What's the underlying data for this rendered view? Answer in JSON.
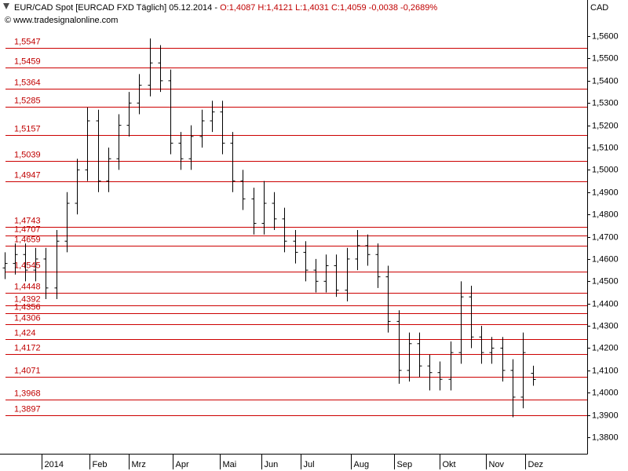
{
  "chart_data": {
    "type": "ohlc",
    "title": "EUR/CAD Spot [EURCAD FXD  Täglich] 05.12.2014 -",
    "subtitle": "O:1,4087 H:1,4121 L:1,4031 C:1,4059 -0,0038 -0,2689%",
    "source": "© www.tradesignalonline.com",
    "ylabel": "CAD",
    "color": "#000000",
    "level_color": "#cc0000",
    "x": [
      -18,
      -13,
      -8,
      -3,
      2,
      7,
      12,
      17,
      22,
      27,
      32,
      37,
      42,
      47,
      52,
      57,
      62,
      67,
      72,
      77,
      82,
      87,
      92,
      97,
      102,
      107,
      112,
      117,
      122,
      127,
      132,
      137,
      142,
      147,
      152,
      157,
      162,
      167,
      172,
      177,
      182,
      187,
      192,
      197,
      202,
      207,
      212,
      217,
      222,
      227,
      232,
      237
    ],
    "open": [
      1.456,
      1.458,
      1.462,
      1.455,
      1.46,
      1.447,
      1.468,
      1.485,
      1.5,
      1.522,
      1.495,
      1.505,
      1.52,
      1.53,
      1.538,
      1.548,
      1.54,
      1.512,
      1.505,
      1.515,
      1.522,
      1.526,
      1.512,
      1.495,
      1.487,
      1.476,
      1.485,
      1.478,
      1.468,
      1.463,
      1.455,
      1.45,
      1.457,
      1.446,
      1.46,
      1.466,
      1.462,
      1.452,
      1.432,
      1.41,
      1.422,
      1.412,
      1.409,
      1.406,
      1.418,
      1.443,
      1.425,
      1.418,
      1.42,
      1.41,
      1.398,
      1.4087
    ],
    "high": [
      1.463,
      1.467,
      1.467,
      1.465,
      1.465,
      1.473,
      1.49,
      1.505,
      1.528,
      1.527,
      1.51,
      1.525,
      1.535,
      1.543,
      1.559,
      1.556,
      1.545,
      1.517,
      1.52,
      1.527,
      1.531,
      1.531,
      1.517,
      1.5,
      1.492,
      1.495,
      1.49,
      1.483,
      1.473,
      1.468,
      1.46,
      1.462,
      1.462,
      1.465,
      1.473,
      1.471,
      1.467,
      1.457,
      1.437,
      1.427,
      1.427,
      1.417,
      1.414,
      1.423,
      1.45,
      1.448,
      1.43,
      1.425,
      1.425,
      1.415,
      1.427,
      1.4121
    ],
    "low": [
      1.451,
      1.453,
      1.45,
      1.45,
      1.442,
      1.442,
      1.463,
      1.48,
      1.495,
      1.49,
      1.49,
      1.5,
      1.515,
      1.525,
      1.533,
      1.535,
      1.507,
      1.5,
      1.5,
      1.51,
      1.517,
      1.507,
      1.49,
      1.482,
      1.471,
      1.471,
      1.473,
      1.463,
      1.458,
      1.45,
      1.445,
      1.445,
      1.443,
      1.441,
      1.455,
      1.457,
      1.447,
      1.427,
      1.404,
      1.405,
      1.407,
      1.401,
      1.401,
      1.401,
      1.413,
      1.42,
      1.413,
      1.413,
      1.405,
      1.389,
      1.393,
      1.4031
    ],
    "close": [
      1.458,
      1.462,
      1.455,
      1.46,
      1.447,
      1.468,
      1.485,
      1.5,
      1.522,
      1.495,
      1.505,
      1.52,
      1.53,
      1.538,
      1.548,
      1.54,
      1.512,
      1.505,
      1.515,
      1.522,
      1.526,
      1.512,
      1.495,
      1.487,
      1.476,
      1.485,
      1.478,
      1.468,
      1.463,
      1.455,
      1.45,
      1.457,
      1.446,
      1.46,
      1.466,
      1.462,
      1.452,
      1.432,
      1.41,
      1.422,
      1.412,
      1.409,
      1.406,
      1.418,
      1.443,
      1.425,
      1.418,
      1.42,
      1.41,
      1.398,
      1.418,
      1.4059
    ],
    "xlim": [
      -19,
      263
    ],
    "xticks": [
      {
        "value": 0,
        "label": "2014"
      },
      {
        "value": 23,
        "label": "Feb"
      },
      {
        "value": 42,
        "label": "Mrz"
      },
      {
        "value": 63,
        "label": "Apr"
      },
      {
        "value": 86,
        "label": "Mai"
      },
      {
        "value": 106,
        "label": "Jun"
      },
      {
        "value": 125,
        "label": "Jul"
      },
      {
        "value": 149,
        "label": "Aug"
      },
      {
        "value": 170,
        "label": "Sep"
      },
      {
        "value": 192,
        "label": "Okt"
      },
      {
        "value": 214,
        "label": "Nov"
      },
      {
        "value": 233,
        "label": "Dez"
      }
    ],
    "ylim": [
      1.3726,
      1.5692
    ],
    "yticks": [
      {
        "value": 1.56,
        "label": "1,5600"
      },
      {
        "value": 1.55,
        "label": "1,5500"
      },
      {
        "value": 1.54,
        "label": "1,5400"
      },
      {
        "value": 1.53,
        "label": "1,5300"
      },
      {
        "value": 1.52,
        "label": "1,5200"
      },
      {
        "value": 1.51,
        "label": "1,5100"
      },
      {
        "value": 1.5,
        "label": "1,5000"
      },
      {
        "value": 1.49,
        "label": "1,4900"
      },
      {
        "value": 1.48,
        "label": "1,4800"
      },
      {
        "value": 1.47,
        "label": "1,4700"
      },
      {
        "value": 1.46,
        "label": "1,4600"
      },
      {
        "value": 1.45,
        "label": "1,4500"
      },
      {
        "value": 1.44,
        "label": "1,4400"
      },
      {
        "value": 1.43,
        "label": "1,4300"
      },
      {
        "value": 1.42,
        "label": "1,4200"
      },
      {
        "value": 1.41,
        "label": "1,4100"
      },
      {
        "value": 1.4,
        "label": "1,4000"
      },
      {
        "value": 1.39,
        "label": "1,3900"
      },
      {
        "value": 1.38,
        "label": "1,3800"
      }
    ],
    "levels": [
      {
        "value": 1.5547,
        "label": "1,5547"
      },
      {
        "value": 1.5459,
        "label": "1,5459"
      },
      {
        "value": 1.5364,
        "label": "1,5364"
      },
      {
        "value": 1.5285,
        "label": "1,5285"
      },
      {
        "value": 1.5157,
        "label": "1,5157"
      },
      {
        "value": 1.5039,
        "label": "1,5039"
      },
      {
        "value": 1.4947,
        "label": "1,4947"
      },
      {
        "value": 1.4743,
        "label": "1,4743"
      },
      {
        "value": 1.4707,
        "label": "1,4707"
      },
      {
        "value": 1.4659,
        "label": "1,4659"
      },
      {
        "value": 1.4545,
        "label": "1,4545"
      },
      {
        "value": 1.4448,
        "label": "1,4448"
      },
      {
        "value": 1.4392,
        "label": "1,4392"
      },
      {
        "value": 1.4356,
        "label": "1,4356"
      },
      {
        "value": 1.4306,
        "label": "1,4306"
      },
      {
        "value": 1.424,
        "label": "1,424"
      },
      {
        "value": 1.4172,
        "label": "1,4172"
      },
      {
        "value": 1.4071,
        "label": "1,4071"
      },
      {
        "value": 1.3968,
        "label": "1,3968"
      },
      {
        "value": 1.3897,
        "label": "1,3897"
      }
    ]
  }
}
